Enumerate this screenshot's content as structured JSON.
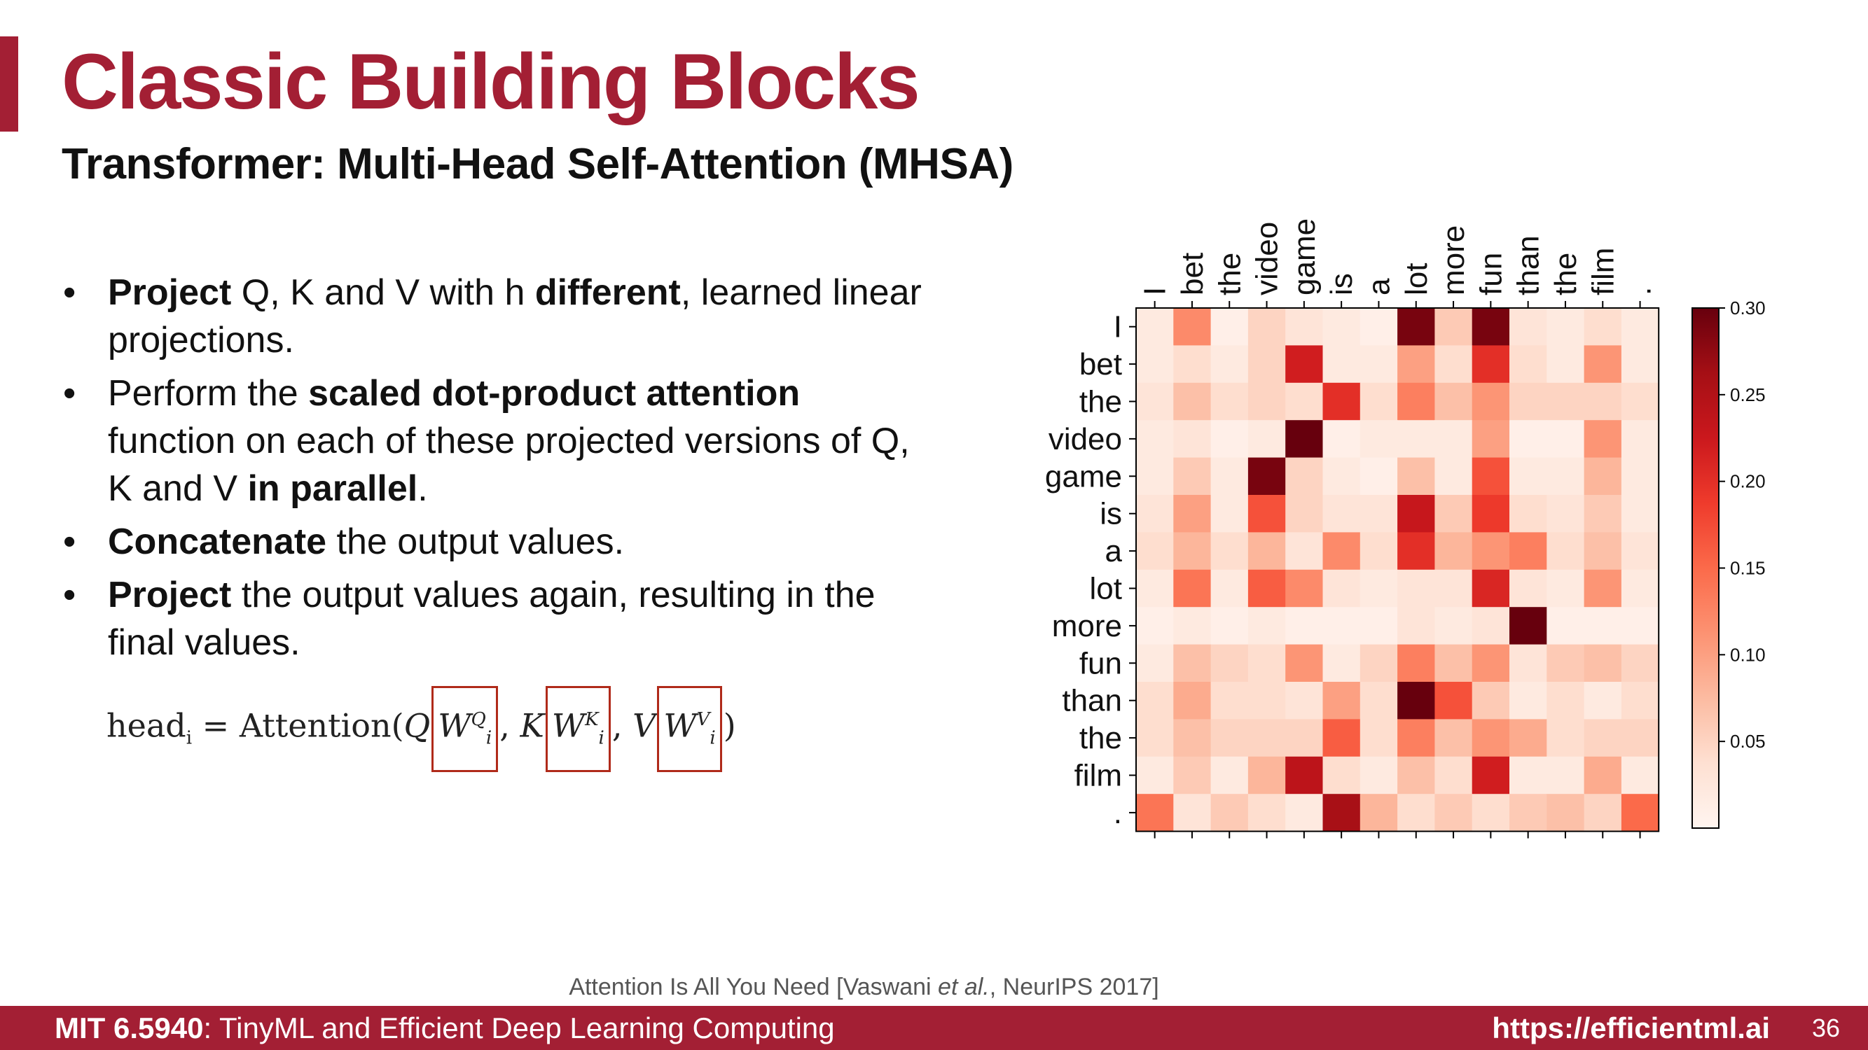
{
  "slide": {
    "title": "Classic Building Blocks",
    "subtitle": "Transformer: Multi-Head Self-Attention (MHSA)",
    "bullets": [
      [
        {
          "t": "Project",
          "b": true
        },
        {
          "t": " Q, K and V with h "
        },
        {
          "t": "different",
          "b": true
        },
        {
          "t": ", learned linear projections."
        }
      ],
      [
        {
          "t": "Perform the "
        },
        {
          "t": "scaled dot-product attention",
          "b": true
        },
        {
          "t": " function on each of these projected versions of Q, K and V "
        },
        {
          "t": "in parallel",
          "b": true
        },
        {
          "t": "."
        }
      ],
      [
        {
          "t": "Concatenate",
          "b": true
        },
        {
          "t": " the output values."
        }
      ],
      [
        {
          "t": "Project",
          "b": true
        },
        {
          "t": " the output values again, resulting in the final values."
        }
      ]
    ],
    "formula": {
      "lhs": "head",
      "lhs_sub": "i",
      "eq": " = Attention(",
      "q": "Q",
      "k": "K",
      "v": "V",
      "w": "W",
      "sub": "i",
      "sup_q": "Q",
      "sup_k": "K",
      "sup_v": "V",
      "close": ")"
    },
    "citation": {
      "pre": "Attention Is All You Need [Vaswani ",
      "etal": "et al.",
      "post": ", NeurIPS 2017]"
    },
    "footer": {
      "course_bold": "MIT 6.5940",
      "course_rest": ": TinyML and Efficient Deep Learning Computing",
      "url": "https://efficientml.ai",
      "page": "36"
    },
    "colors": {
      "accent": "#a31f34"
    }
  },
  "chart_data": {
    "type": "heatmap",
    "tokens": [
      "I",
      "bet",
      "the",
      "video",
      "game",
      "is",
      "a",
      "lot",
      "more",
      "fun",
      "than",
      "the",
      "film",
      "."
    ],
    "colorbar": {
      "min": 0,
      "max": 0.3,
      "ticks": [
        "0.30",
        "0.25",
        "0.20",
        "0.15",
        "0.10",
        "0.05"
      ],
      "cmap": "Reds"
    },
    "values": [
      [
        0.02,
        0.12,
        0.01,
        0.05,
        0.03,
        0.02,
        0.01,
        0.29,
        0.06,
        0.29,
        0.03,
        0.02,
        0.04,
        0.02
      ],
      [
        0.02,
        0.04,
        0.02,
        0.05,
        0.22,
        0.02,
        0.02,
        0.1,
        0.04,
        0.2,
        0.04,
        0.02,
        0.11,
        0.02
      ],
      [
        0.03,
        0.07,
        0.04,
        0.05,
        0.04,
        0.2,
        0.04,
        0.13,
        0.07,
        0.11,
        0.05,
        0.05,
        0.05,
        0.04
      ],
      [
        0.02,
        0.03,
        0.01,
        0.02,
        0.3,
        0.01,
        0.02,
        0.02,
        0.02,
        0.1,
        0.01,
        0.01,
        0.11,
        0.02
      ],
      [
        0.02,
        0.06,
        0.02,
        0.29,
        0.05,
        0.02,
        0.01,
        0.07,
        0.02,
        0.17,
        0.02,
        0.02,
        0.08,
        0.02
      ],
      [
        0.03,
        0.1,
        0.02,
        0.17,
        0.05,
        0.03,
        0.03,
        0.23,
        0.06,
        0.19,
        0.04,
        0.03,
        0.06,
        0.02
      ],
      [
        0.04,
        0.08,
        0.04,
        0.08,
        0.03,
        0.12,
        0.04,
        0.2,
        0.08,
        0.11,
        0.13,
        0.04,
        0.07,
        0.03
      ],
      [
        0.02,
        0.14,
        0.02,
        0.16,
        0.12,
        0.03,
        0.02,
        0.03,
        0.03,
        0.21,
        0.03,
        0.02,
        0.11,
        0.02
      ],
      [
        0.01,
        0.02,
        0.01,
        0.02,
        0.01,
        0.01,
        0.01,
        0.03,
        0.02,
        0.03,
        0.3,
        0.01,
        0.01,
        0.01
      ],
      [
        0.02,
        0.07,
        0.05,
        0.04,
        0.11,
        0.02,
        0.05,
        0.13,
        0.07,
        0.11,
        0.03,
        0.06,
        0.07,
        0.05
      ],
      [
        0.04,
        0.09,
        0.04,
        0.04,
        0.03,
        0.1,
        0.04,
        0.3,
        0.17,
        0.06,
        0.02,
        0.04,
        0.02,
        0.04
      ],
      [
        0.04,
        0.07,
        0.05,
        0.05,
        0.05,
        0.16,
        0.04,
        0.13,
        0.07,
        0.11,
        0.09,
        0.04,
        0.05,
        0.05
      ],
      [
        0.02,
        0.06,
        0.02,
        0.08,
        0.24,
        0.04,
        0.02,
        0.07,
        0.04,
        0.22,
        0.02,
        0.02,
        0.09,
        0.02
      ],
      [
        0.14,
        0.03,
        0.06,
        0.04,
        0.02,
        0.26,
        0.08,
        0.04,
        0.06,
        0.04,
        0.06,
        0.07,
        0.05,
        0.15
      ]
    ]
  }
}
